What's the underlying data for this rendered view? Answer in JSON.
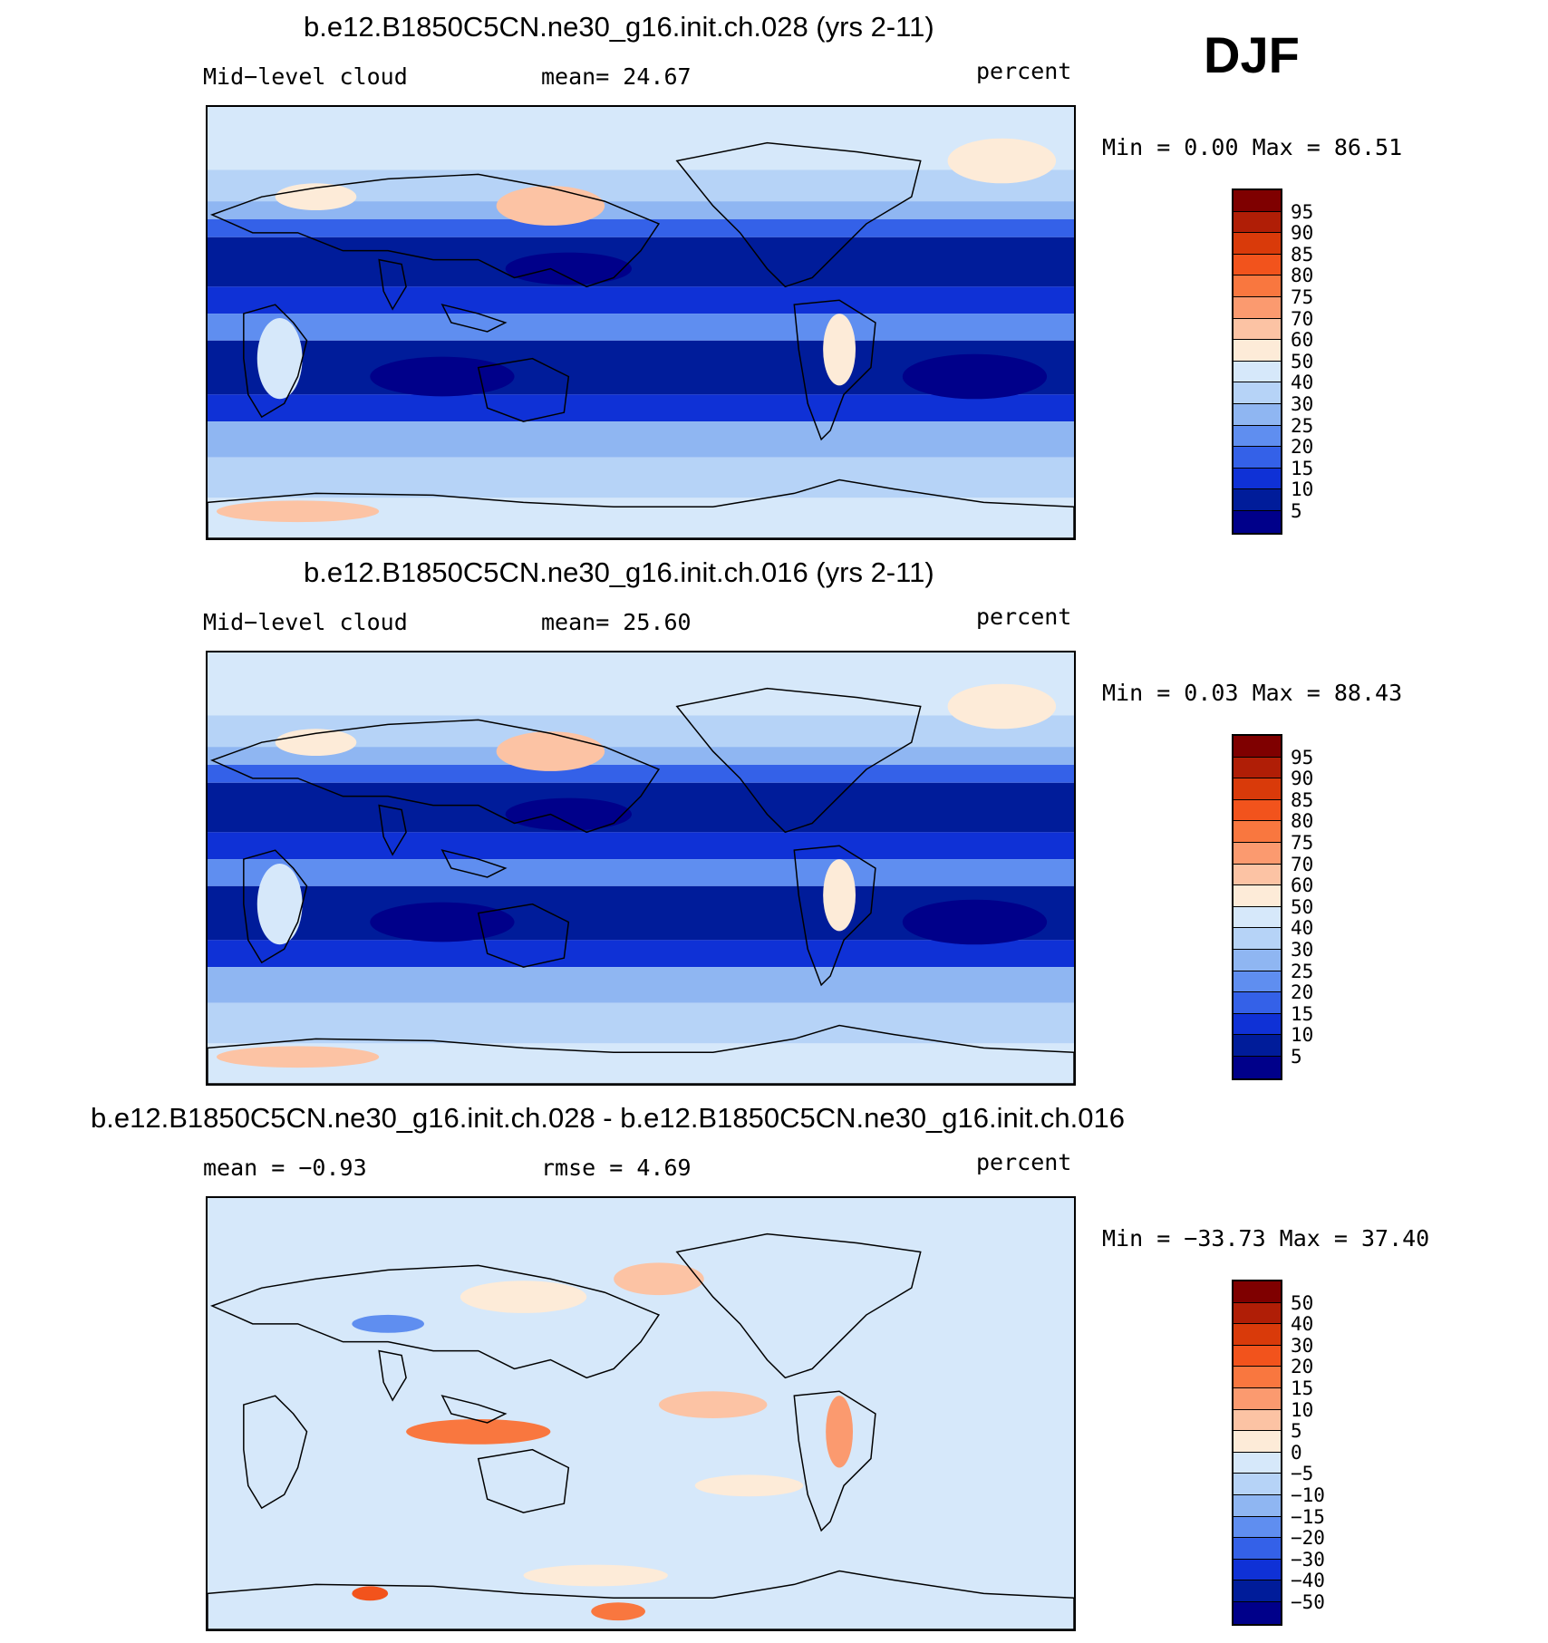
{
  "season": "DJF",
  "panels": [
    {
      "title": "b.e12.B1850C5CN.ne30_g16.init.ch.028 (yrs 2-11)",
      "left_label": "Mid−level cloud",
      "center_label": "mean=   24.67",
      "right_label": "percent",
      "minmax": "Min =    0.00 Max =   86.51",
      "field": "absolute",
      "colorbar_labels": [
        "95",
        "90",
        "85",
        "80",
        "75",
        "70",
        "60",
        "50",
        "40",
        "30",
        "25",
        "20",
        "15",
        "10",
        "5"
      ]
    },
    {
      "title": "b.e12.B1850C5CN.ne30_g16.init.ch.016 (yrs 2-11)",
      "left_label": "Mid−level cloud",
      "center_label": "mean=   25.60",
      "right_label": "percent",
      "minmax": "Min =    0.03 Max =   88.43",
      "field": "absolute",
      "colorbar_labels": [
        "95",
        "90",
        "85",
        "80",
        "75",
        "70",
        "60",
        "50",
        "40",
        "30",
        "25",
        "20",
        "15",
        "10",
        "5"
      ]
    },
    {
      "title": "b.e12.B1850C5CN.ne30_g16.init.ch.028 - b.e12.B1850C5CN.ne30_g16.init.ch.016",
      "left_label": "mean =  −0.93",
      "center_label": "rmse =    4.69",
      "right_label": "percent",
      "minmax": "Min = −33.73 Max =   37.40",
      "field": "difference",
      "colorbar_labels": [
        "50",
        "40",
        "30",
        "20",
        "15",
        "10",
        "5",
        "0",
        "−5",
        "−10",
        "−15",
        "−20",
        "−30",
        "−40",
        "−50"
      ]
    }
  ],
  "colors": {
    "colorbar": [
      "#7f0000",
      "#b01e06",
      "#d93a0a",
      "#f2531c",
      "#f9773f",
      "#fb9a6f",
      "#fcc3a4",
      "#fdebd8",
      "#d6e8fa",
      "#b6d3f7",
      "#8fb6f2",
      "#5f8ef0",
      "#3461e8",
      "#0f31d6",
      "#001c9a",
      "#00008a"
    ],
    "background_light": "#c6dcf8",
    "land_line": "#000000"
  }
}
